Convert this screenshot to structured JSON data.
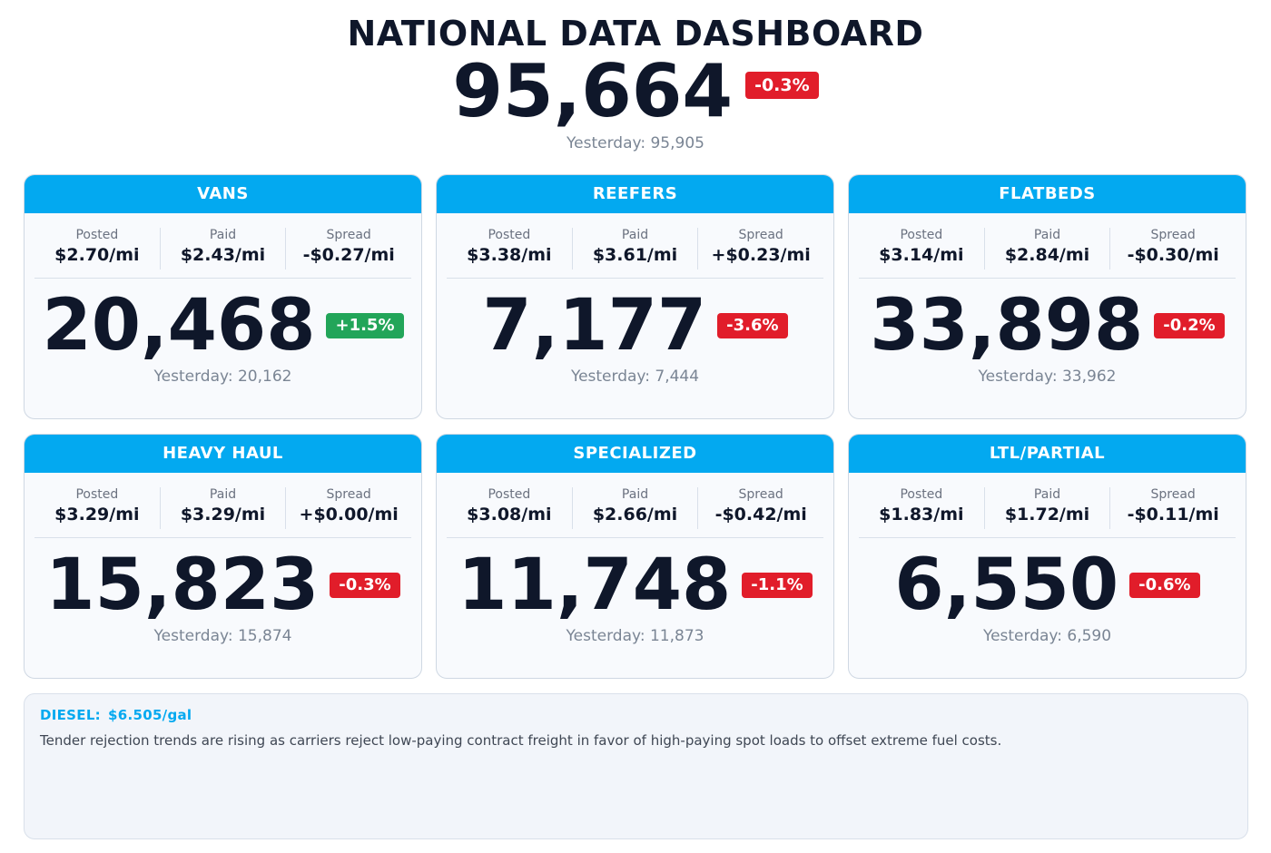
{
  "header": {
    "title": "NATIONAL DATA DASHBOARD",
    "total": "95,664",
    "change": "-0.3%",
    "change_direction": "down",
    "yesterday": "Yesterday: 95,905"
  },
  "labels": {
    "posted": "Posted",
    "paid": "Paid",
    "spread": "Spread"
  },
  "colors": {
    "header": "#03a9f0",
    "negative": "#e11d2a",
    "positive": "#22a559",
    "text": "#0f172a"
  },
  "cards": [
    {
      "name": "VANS",
      "posted": "$2.70/mi",
      "paid": "$2.43/mi",
      "spread": "-$0.27/mi",
      "value": "20,468",
      "change": "+1.5%",
      "direction": "up",
      "yesterday": "Yesterday: 20,162"
    },
    {
      "name": "REEFERS",
      "posted": "$3.38/mi",
      "paid": "$3.61/mi",
      "spread": "+$0.23/mi",
      "value": "7,177",
      "change": "-3.6%",
      "direction": "down",
      "yesterday": "Yesterday: 7,444"
    },
    {
      "name": "FLATBEDS",
      "posted": "$3.14/mi",
      "paid": "$2.84/mi",
      "spread": "-$0.30/mi",
      "value": "33,898",
      "change": "-0.2%",
      "direction": "down",
      "yesterday": "Yesterday: 33,962"
    },
    {
      "name": "HEAVY HAUL",
      "posted": "$3.29/mi",
      "paid": "$3.29/mi",
      "spread": "+$0.00/mi",
      "value": "15,823",
      "change": "-0.3%",
      "direction": "down",
      "yesterday": "Yesterday: 15,874"
    },
    {
      "name": "SPECIALIZED",
      "posted": "$3.08/mi",
      "paid": "$2.66/mi",
      "spread": "-$0.42/mi",
      "value": "11,748",
      "change": "-1.1%",
      "direction": "down",
      "yesterday": "Yesterday: 11,873"
    },
    {
      "name": "LTL/PARTIAL",
      "posted": "$1.83/mi",
      "paid": "$1.72/mi",
      "spread": "-$0.11/mi",
      "value": "6,550",
      "change": "-0.6%",
      "direction": "down",
      "yesterday": "Yesterday: 6,590"
    }
  ],
  "news": {
    "diesel_label": "DIESEL:",
    "diesel_price": "$6.505/gal",
    "text": "Tender rejection trends are rising as carriers reject low-paying contract freight in favor of high-paying spot loads to offset extreme fuel costs."
  }
}
